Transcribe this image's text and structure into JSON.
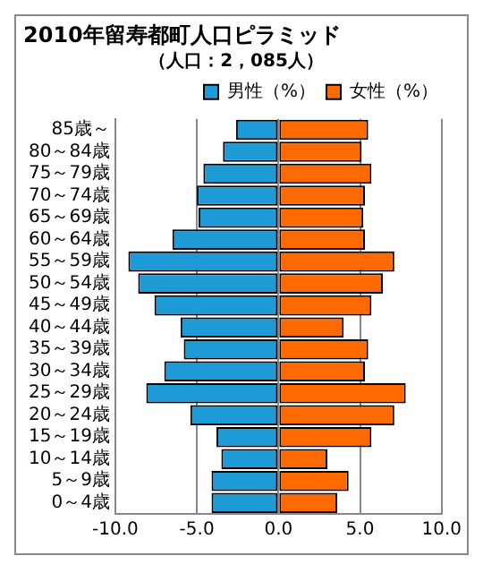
{
  "chart_data": {
    "type": "bar",
    "orientation": "horizontal",
    "stacked": true,
    "title": "2010年留寿都町人口ピラミッド",
    "subtitle": "（人口：2，085人）",
    "categories": [
      "85歳～",
      "80～84歳",
      "75～79歳",
      "70～74歳",
      "65～69歳",
      "60～64歳",
      "55～59歳",
      "50～54歳",
      "45～49歳",
      "40～44歳",
      "35～39歳",
      "30～34歳",
      "25～29歳",
      "20～24歳",
      "15～19歳",
      "10～14歳",
      "5～9歳",
      "0～4歳"
    ],
    "series": [
      {
        "name": "男性（%）",
        "color": "#1e9ad6",
        "values": [
          -2.6,
          -3.4,
          -4.6,
          -5.0,
          -4.9,
          -6.5,
          -9.2,
          -8.6,
          -7.6,
          -6.0,
          -5.8,
          -7.0,
          -8.1,
          -5.4,
          -3.8,
          -3.5,
          -4.1,
          -4.1
        ]
      },
      {
        "name": "女性（%）",
        "color": "#ff6a00",
        "values": [
          5.5,
          5.1,
          5.7,
          5.3,
          5.2,
          5.3,
          7.1,
          6.4,
          5.7,
          4.0,
          5.5,
          5.3,
          7.8,
          7.1,
          5.7,
          3.0,
          4.3,
          3.6
        ]
      }
    ],
    "xlim": [
      -10,
      10
    ],
    "xticks": [
      {
        "value": -10,
        "label": "-10.0"
      },
      {
        "value": -5,
        "label": "-5.0"
      },
      {
        "value": 0,
        "label": "0.0"
      },
      {
        "value": 5,
        "label": "5.0"
      },
      {
        "value": 10,
        "label": "10.0"
      }
    ],
    "grid": "x",
    "legend": "top right"
  }
}
